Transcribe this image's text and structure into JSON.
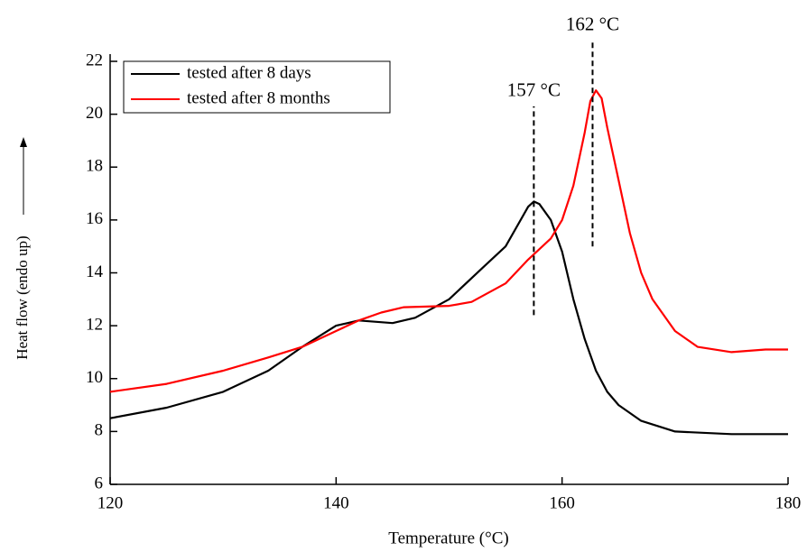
{
  "chart_data": {
    "type": "line",
    "xlabel": "Temperature (°C)",
    "ylabel": "Heat flow (endo up)",
    "xlim": [
      120,
      180
    ],
    "xticks": [
      120,
      140,
      160,
      180
    ],
    "ylim": [
      6,
      22
    ],
    "yticks": [
      6,
      8,
      10,
      12,
      14,
      16,
      18,
      20,
      22
    ],
    "legend": "upper left",
    "series": [
      {
        "name": "tested after 8 days",
        "color": "#000000",
        "x": [
          120,
          125,
          130,
          134,
          137,
          140,
          142,
          145,
          147,
          150,
          153,
          155,
          157,
          157.5,
          158,
          159,
          160,
          161,
          162,
          163,
          164,
          165,
          167,
          170,
          175,
          180
        ],
        "values": [
          8.5,
          8.9,
          9.5,
          10.3,
          11.2,
          12.0,
          12.2,
          12.1,
          12.3,
          13.0,
          14.2,
          15.0,
          16.5,
          16.7,
          16.6,
          16.0,
          14.8,
          13.0,
          11.5,
          10.3,
          9.5,
          9.0,
          8.4,
          8.0,
          7.9,
          7.9
        ]
      },
      {
        "name": "tested after 8 months",
        "color": "#ff0000",
        "x": [
          120,
          125,
          130,
          134,
          137,
          140,
          142,
          144,
          146,
          150,
          152,
          155,
          157,
          159,
          160,
          161,
          162,
          162.5,
          163,
          163.5,
          164,
          165,
          166,
          167,
          168,
          170,
          172,
          175,
          178,
          180
        ],
        "values": [
          9.5,
          9.8,
          10.3,
          10.8,
          11.2,
          11.8,
          12.2,
          12.5,
          12.7,
          12.75,
          12.9,
          13.6,
          14.5,
          15.3,
          16.0,
          17.3,
          19.3,
          20.5,
          20.9,
          20.6,
          19.5,
          17.5,
          15.5,
          14.0,
          13.0,
          11.8,
          11.2,
          11.0,
          11.1,
          11.1
        ]
      }
    ],
    "annotations": [
      {
        "text": "157 °C",
        "x": 157.5,
        "y_from": 12.4,
        "y_to": 20.3
      },
      {
        "text": "162 °C",
        "x": 162.7,
        "y_from": 15.0,
        "y_to": 22.8
      }
    ]
  }
}
